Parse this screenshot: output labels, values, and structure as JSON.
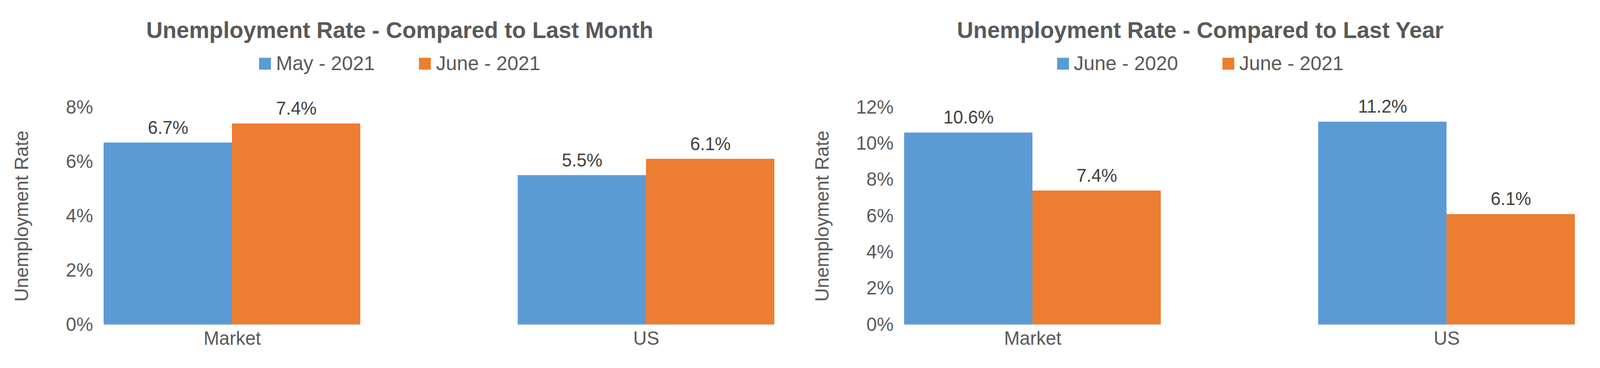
{
  "chart_data": [
    {
      "type": "bar",
      "title": "Unemployment Rate - Compared to Last Month",
      "y_label": "Unemployment Rate",
      "categories": [
        "Market",
        "US"
      ],
      "series": [
        {
          "name": "May - 2021",
          "color": "#5b9bd5",
          "values": [
            6.7,
            5.5
          ],
          "value_labels": [
            "6.7%",
            "5.5%"
          ]
        },
        {
          "name": "June - 2021",
          "color": "#ed7d31",
          "values": [
            7.4,
            6.1
          ],
          "value_labels": [
            "7.4%",
            "6.1%"
          ]
        }
      ],
      "ylim": [
        0,
        8
      ],
      "yticks": [
        {
          "value": 0,
          "label": "0%"
        },
        {
          "value": 2,
          "label": "2%"
        },
        {
          "value": 4,
          "label": "4%"
        },
        {
          "value": 6,
          "label": "6%"
        },
        {
          "value": 8,
          "label": "8%"
        }
      ],
      "grid": false,
      "legend": "top",
      "data_labels": true
    },
    {
      "type": "bar",
      "title": "Unemployment Rate - Compared to Last Year",
      "y_label": "Unemployment Rate",
      "categories": [
        "Market",
        "US"
      ],
      "series": [
        {
          "name": "June - 2020",
          "color": "#5b9bd5",
          "values": [
            10.6,
            11.2
          ],
          "value_labels": [
            "10.6%",
            "11.2%"
          ]
        },
        {
          "name": "June - 2021",
          "color": "#ed7d31",
          "values": [
            7.4,
            6.1
          ],
          "value_labels": [
            "7.4%",
            "6.1%"
          ]
        }
      ],
      "ylim": [
        0,
        12
      ],
      "yticks": [
        {
          "value": 0,
          "label": "0%"
        },
        {
          "value": 2,
          "label": "2%"
        },
        {
          "value": 4,
          "label": "4%"
        },
        {
          "value": 6,
          "label": "6%"
        },
        {
          "value": 8,
          "label": "8%"
        },
        {
          "value": 10,
          "label": "10%"
        },
        {
          "value": 12,
          "label": "12%"
        }
      ],
      "grid": false,
      "legend": "top",
      "data_labels": true
    }
  ]
}
